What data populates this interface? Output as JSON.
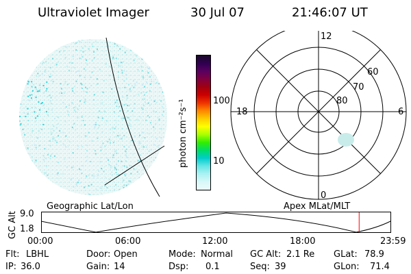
{
  "header": {
    "instrument": "Ultraviolet Imager",
    "date": "30 Jul 07",
    "time": "21:46:07 UT"
  },
  "colorbar": {
    "unit_label": "photon cm⁻²s⁻¹",
    "ticks": [
      "100",
      "10"
    ],
    "colors": [
      "#1a0a2a",
      "#300050",
      "#5a0060",
      "#800040",
      "#a00010",
      "#cc0000",
      "#ee3300",
      "#ff8800",
      "#ffcc00",
      "#ffff00",
      "#aaff00",
      "#33ee00",
      "#00dd66",
      "#00cccc",
      "#66e6e6",
      "#aaf2f2",
      "#d8f8f8",
      "#ecfbfb"
    ]
  },
  "panels": {
    "left_label": "Geographic Lat/Lon",
    "right_label": "Apex MLat/MLT",
    "polar_mlt_labels": {
      "top": "12",
      "right": "6",
      "bottom": "0",
      "left": "18"
    },
    "polar_mlat_labels": [
      "60",
      "70",
      "80"
    ]
  },
  "gc_alt_plot": {
    "ylabel": "GC Alt",
    "yticks": [
      "9.0",
      "1.8"
    ],
    "xticks": [
      "00:00",
      "06:00",
      "12:00",
      "18:00",
      "23:59"
    ],
    "current_time_fraction": 0.9102,
    "marker_color": "#ff0000"
  },
  "info": {
    "row1": [
      {
        "label": "Flt:",
        "value": "LBHL"
      },
      {
        "label": "Door:",
        "value": "Open"
      },
      {
        "label": "Mode:",
        "value": "Normal"
      },
      {
        "label": "GC Alt:",
        "value": "2.1 Re"
      },
      {
        "label": "GLat:",
        "value": "78.9"
      }
    ],
    "row2": [
      {
        "label": "IP:",
        "value": "36.0"
      },
      {
        "label": "Gain:",
        "value": "14"
      },
      {
        "label": "Dsp:",
        "value": "0.1"
      },
      {
        "label": "Seq:",
        "value": "39"
      },
      {
        "label": "GLon:",
        "value": "71.4"
      }
    ]
  }
}
